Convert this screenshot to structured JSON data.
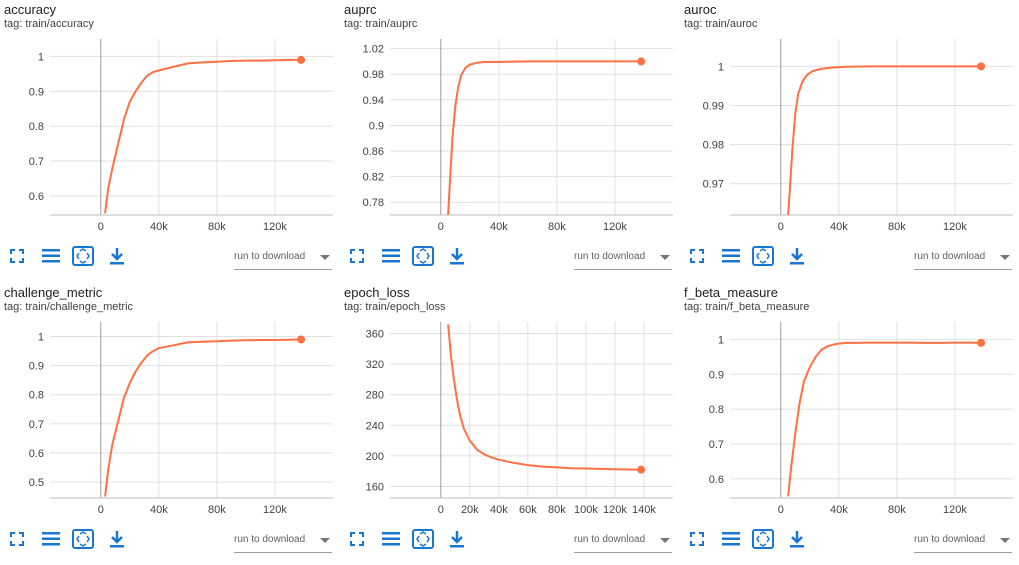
{
  "accent_color": "#ff7043",
  "icon_color": "#1976d2",
  "cards": [
    {
      "title": "accuracy",
      "tag": "tag: train/accuracy",
      "download_label": "run to download",
      "chart_data": {
        "type": "line",
        "series": [
          {
            "x": [
              3000,
              5000,
              8000,
              12000,
              16000,
              20000,
              24000,
              28000,
              32000,
              36000,
              40000,
              45000,
              50000,
              55000,
              60000,
              70000,
              80000,
              90000,
              100000,
              110000,
              120000,
              130000,
              138000
            ],
            "y": [
              0.55,
              0.62,
              0.68,
              0.75,
              0.82,
              0.87,
              0.9,
              0.925,
              0.945,
              0.955,
              0.96,
              0.965,
              0.97,
              0.975,
              0.98,
              0.983,
              0.985,
              0.987,
              0.988,
              0.988,
              0.989,
              0.99,
              0.99
            ]
          }
        ],
        "x_ticks": [
          "0",
          "40k",
          "80k",
          "120k"
        ],
        "x_tick_values": [
          0,
          40000,
          80000,
          120000
        ],
        "y_ticks": [
          "1",
          "0.9",
          "0.8",
          "0.7",
          "0.6"
        ],
        "y_tick_values": [
          1,
          0.9,
          0.8,
          0.7,
          0.6
        ],
        "xlim": [
          -35000,
          160000
        ],
        "ylim": [
          0.545,
          1.05
        ],
        "grid": true
      }
    },
    {
      "title": "auprc",
      "tag": "tag: train/auprc",
      "download_label": "run to download",
      "chart_data": {
        "type": "line",
        "series": [
          {
            "x": [
              5000,
              6500,
              8000,
              10000,
              12000,
              14000,
              17000,
              20000,
              25000,
              30000,
              40000,
              60000,
              80000,
              100000,
              120000,
              138000
            ],
            "y": [
              0.76,
              0.82,
              0.88,
              0.93,
              0.96,
              0.978,
              0.99,
              0.995,
              0.998,
              0.999,
              0.999,
              1.0,
              1.0,
              1.0,
              1.0,
              1.0
            ]
          }
        ],
        "x_ticks": [
          "0",
          "40k",
          "80k",
          "120k"
        ],
        "x_tick_values": [
          0,
          40000,
          80000,
          120000
        ],
        "y_ticks": [
          "1.02",
          "0.98",
          "0.94",
          "0.9",
          "0.86",
          "0.82",
          "0.78"
        ],
        "y_tick_values": [
          1.02,
          0.98,
          0.94,
          0.9,
          0.86,
          0.82,
          0.78
        ],
        "xlim": [
          -35000,
          160000
        ],
        "ylim": [
          0.76,
          1.035
        ],
        "grid": true
      }
    },
    {
      "title": "auroc",
      "tag": "tag: train/auroc",
      "download_label": "run to download",
      "chart_data": {
        "type": "line",
        "series": [
          {
            "x": [
              5000,
              6500,
              8000,
              10000,
              12000,
              15000,
              18000,
              22000,
              28000,
              35000,
              45000,
              60000,
              80000,
              100000,
              120000,
              138000
            ],
            "y": [
              0.962,
              0.97,
              0.979,
              0.988,
              0.993,
              0.9962,
              0.9978,
              0.9988,
              0.9994,
              0.9997,
              0.9999,
              1.0,
              1.0,
              1.0,
              1.0,
              1.0
            ]
          }
        ],
        "x_ticks": [
          "0",
          "40k",
          "80k",
          "120k"
        ],
        "x_tick_values": [
          0,
          40000,
          80000,
          120000
        ],
        "y_ticks": [
          "1",
          "0.99",
          "0.98",
          "0.97"
        ],
        "y_tick_values": [
          1,
          0.99,
          0.98,
          0.97
        ],
        "xlim": [
          -35000,
          160000
        ],
        "ylim": [
          0.962,
          1.007
        ],
        "grid": true
      }
    },
    {
      "title": "challenge_metric",
      "tag": "tag: train/challenge_metric",
      "download_label": "run to download",
      "chart_data": {
        "type": "line",
        "series": [
          {
            "x": [
              3000,
              5000,
              8000,
              12000,
              16000,
              20000,
              24000,
              28000,
              32000,
              36000,
              40000,
              45000,
              50000,
              55000,
              60000,
              70000,
              80000,
              90000,
              100000,
              110000,
              120000,
              130000,
              138000
            ],
            "y": [
              0.45,
              0.54,
              0.63,
              0.71,
              0.79,
              0.84,
              0.88,
              0.91,
              0.935,
              0.95,
              0.96,
              0.965,
              0.97,
              0.975,
              0.98,
              0.982,
              0.984,
              0.986,
              0.987,
              0.988,
              0.988,
              0.989,
              0.99
            ]
          }
        ],
        "x_ticks": [
          "0",
          "40k",
          "80k",
          "120k"
        ],
        "x_tick_values": [
          0,
          40000,
          80000,
          120000
        ],
        "y_ticks": [
          "1",
          "0.9",
          "0.8",
          "0.7",
          "0.6",
          "0.5"
        ],
        "y_tick_values": [
          1,
          0.9,
          0.8,
          0.7,
          0.6,
          0.5
        ],
        "xlim": [
          -35000,
          160000
        ],
        "ylim": [
          0.445,
          1.05
        ],
        "grid": true
      }
    },
    {
      "title": "epoch_loss",
      "tag": "tag: train/epoch_loss",
      "download_label": "run to download",
      "chart_data": {
        "type": "line",
        "series": [
          {
            "x": [
              5000,
              7000,
              9000,
              11000,
              13000,
              16000,
              20000,
              25000,
              30000,
              35000,
              40000,
              50000,
              60000,
              70000,
              80000,
              90000,
              100000,
              110000,
              120000,
              130000,
              138000
            ],
            "y": [
              372,
              330,
              300,
              275,
              255,
              235,
              220,
              208,
              202,
              198,
              195,
              191,
              188,
              186,
              185,
              184,
              183.5,
              183,
              182.5,
              182.3,
              182
            ]
          }
        ],
        "x_ticks": [
          "0",
          "20k",
          "40k",
          "60k",
          "80k",
          "100k",
          "120k",
          "140k"
        ],
        "x_tick_values": [
          0,
          20000,
          40000,
          60000,
          80000,
          100000,
          120000,
          140000
        ],
        "y_ticks": [
          "360",
          "320",
          "280",
          "240",
          "200",
          "160"
        ],
        "y_tick_values": [
          360,
          320,
          280,
          240,
          200,
          160
        ],
        "xlim": [
          -35000,
          160000
        ],
        "ylim": [
          145,
          375
        ],
        "grid": true
      }
    },
    {
      "title": "f_beta_measure",
      "tag": "tag: train/f_beta_measure",
      "download_label": "run to download",
      "chart_data": {
        "type": "line",
        "series": [
          {
            "x": [
              5000,
              7000,
              10000,
              13000,
              16000,
              20000,
              24000,
              28000,
              32000,
              36000,
              40000,
              45000,
              50000,
              60000,
              70000,
              80000,
              90000,
              100000,
              110000,
              120000,
              130000,
              138000
            ],
            "y": [
              0.55,
              0.63,
              0.73,
              0.82,
              0.88,
              0.92,
              0.95,
              0.97,
              0.98,
              0.985,
              0.988,
              0.99,
              0.99,
              0.991,
              0.991,
              0.991,
              0.991,
              0.99,
              0.99,
              0.991,
              0.991,
              0.99
            ]
          }
        ],
        "x_ticks": [
          "0",
          "40k",
          "80k",
          "120k"
        ],
        "x_tick_values": [
          0,
          40000,
          80000,
          120000
        ],
        "y_ticks": [
          "1",
          "0.9",
          "0.8",
          "0.7",
          "0.6"
        ],
        "y_tick_values": [
          1,
          0.9,
          0.8,
          0.7,
          0.6
        ],
        "xlim": [
          -35000,
          160000
        ],
        "ylim": [
          0.545,
          1.05
        ],
        "grid": true
      }
    }
  ]
}
